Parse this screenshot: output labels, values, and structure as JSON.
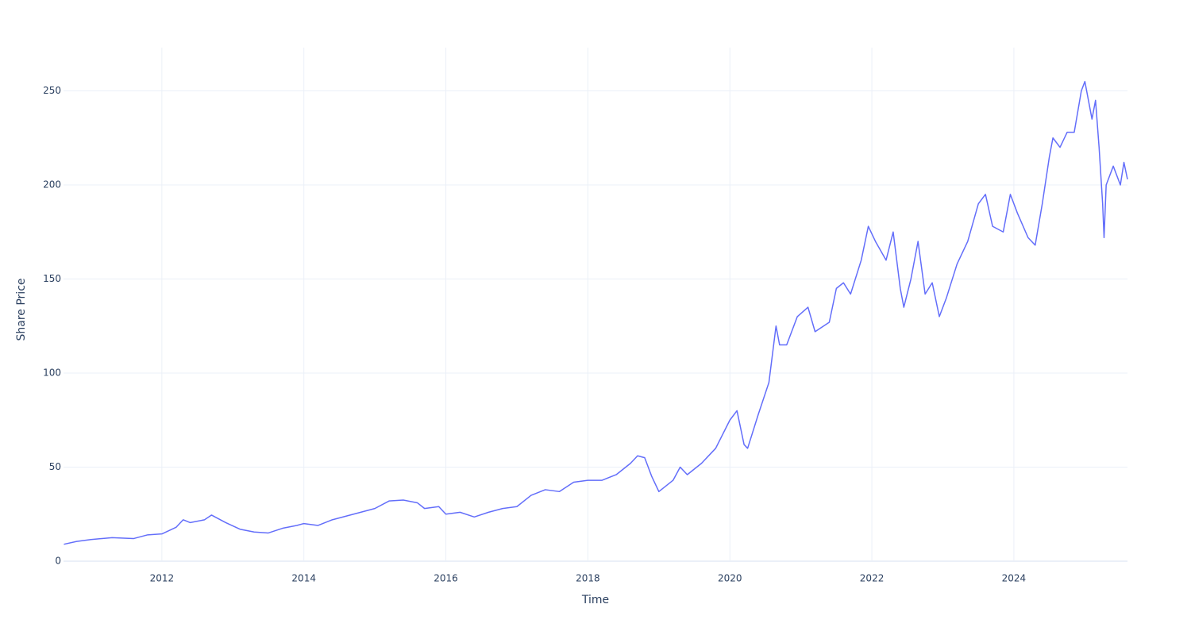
{
  "chart_data": {
    "type": "line",
    "x_label": "Time",
    "y_label": "Share Price",
    "color": "#636efa",
    "grid": true,
    "x": [
      2010.62,
      2010.8,
      2011.0,
      2011.3,
      2011.6,
      2011.8,
      2012.0,
      2012.2,
      2012.3,
      2012.4,
      2012.6,
      2012.7,
      2012.9,
      2013.1,
      2013.3,
      2013.5,
      2013.7,
      2013.9,
      2014.0,
      2014.2,
      2014.4,
      2014.6,
      2014.8,
      2015.0,
      2015.2,
      2015.4,
      2015.6,
      2015.7,
      2015.9,
      2016.0,
      2016.2,
      2016.4,
      2016.6,
      2016.8,
      2017.0,
      2017.2,
      2017.4,
      2017.6,
      2017.8,
      2018.0,
      2018.2,
      2018.4,
      2018.6,
      2018.7,
      2018.8,
      2018.9,
      2019.0,
      2019.2,
      2019.3,
      2019.4,
      2019.6,
      2019.8,
      2020.0,
      2020.1,
      2020.2,
      2020.25,
      2020.4,
      2020.55,
      2020.65,
      2020.7,
      2020.8,
      2020.95,
      2021.1,
      2021.2,
      2021.4,
      2021.5,
      2021.6,
      2021.7,
      2021.85,
      2021.95,
      2022.05,
      2022.2,
      2022.3,
      2022.4,
      2022.45,
      2022.55,
      2022.65,
      2022.75,
      2022.85,
      2022.95,
      2023.05,
      2023.2,
      2023.35,
      2023.5,
      2023.6,
      2023.7,
      2023.85,
      2023.95,
      2024.05,
      2024.2,
      2024.3,
      2024.4,
      2024.5,
      2024.55,
      2024.65,
      2024.75,
      2024.85,
      2024.95,
      2025.0,
      2025.1,
      2025.15,
      2025.2,
      2025.25,
      2025.27,
      2025.3,
      2025.4,
      2025.5,
      2025.55,
      2025.6
    ],
    "values": [
      9,
      10.5,
      11.5,
      12.5,
      12,
      14,
      14.5,
      18,
      22,
      20.5,
      22,
      24.5,
      20.5,
      17,
      15.5,
      15,
      17.5,
      19,
      20,
      19,
      22,
      24,
      26,
      28,
      32,
      32.5,
      31,
      28,
      29,
      25,
      26,
      23.5,
      26,
      28,
      29,
      35,
      38,
      37,
      42,
      43,
      43,
      46,
      52,
      56,
      55,
      45,
      37,
      43,
      50,
      46,
      52,
      60,
      75,
      80,
      62,
      60,
      78,
      95,
      125,
      115,
      115,
      130,
      135,
      122,
      127,
      145,
      148,
      142,
      160,
      178,
      170,
      160,
      175,
      145,
      135,
      150,
      170,
      142,
      148,
      130,
      140,
      158,
      170,
      190,
      195,
      178,
      175,
      195,
      185,
      172,
      168,
      190,
      215,
      225,
      220,
      228,
      228,
      250,
      255,
      235,
      245,
      220,
      190,
      172,
      200,
      210,
      200,
      212,
      203
    ],
    "xlim": [
      2010.615,
      2025.6
    ],
    "ylim": [
      0,
      273
    ],
    "xticks": [
      2012,
      2014,
      2016,
      2018,
      2020,
      2022,
      2024
    ],
    "yticks": [
      0,
      50,
      100,
      150,
      200,
      250
    ]
  }
}
